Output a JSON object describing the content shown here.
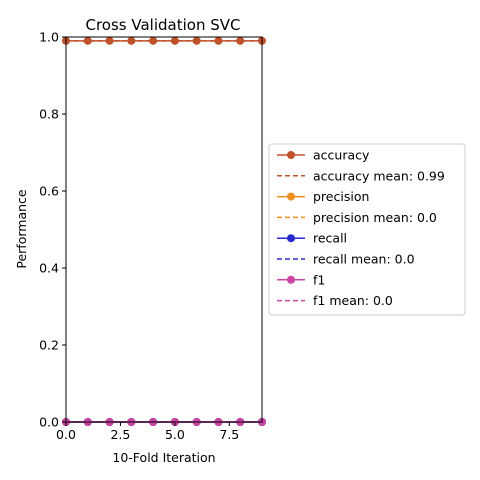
{
  "chart_data": {
    "type": "line",
    "title": "Cross Validation SVC",
    "xlabel": "10-Fold Iteration",
    "ylabel": "Performance",
    "xlim": [
      0,
      9
    ],
    "ylim": [
      0,
      1
    ],
    "x": [
      0,
      1,
      2,
      3,
      4,
      5,
      6,
      7,
      8,
      9
    ],
    "xticks": [
      "0.0",
      "2.5",
      "5.0",
      "7.5"
    ],
    "yticks": [
      "0.0",
      "0.2",
      "0.4",
      "0.6",
      "0.8",
      "1.0"
    ],
    "grid": false,
    "legend_position": "center-right outside",
    "series": [
      {
        "name": "accuracy",
        "color": "#c0522b",
        "values": [
          0.99,
          0.99,
          0.99,
          0.99,
          0.99,
          0.99,
          0.99,
          0.99,
          0.99,
          0.99
        ]
      },
      {
        "name": "precision",
        "color": "#ee8e1c",
        "values": [
          0,
          0,
          0,
          0,
          0,
          0,
          0,
          0,
          0,
          0
        ]
      },
      {
        "name": "recall",
        "color": "#2529cf",
        "values": [
          0,
          0,
          0,
          0,
          0,
          0,
          0,
          0,
          0,
          0
        ]
      },
      {
        "name": "f1",
        "color": "#cc44a3",
        "values": [
          0,
          0,
          0,
          0,
          0,
          0,
          0,
          0,
          0,
          0
        ]
      }
    ],
    "means": [
      {
        "name": "accuracy mean: 0.99",
        "color": "#c0522b",
        "value": 0.99
      },
      {
        "name": "precision mean: 0.0",
        "color": "#ee8e1c",
        "value": 0.0
      },
      {
        "name": "recall mean: 0.0",
        "color": "#2529cf",
        "value": 0.0
      },
      {
        "name": "f1 mean: 0.0",
        "color": "#cc44a3",
        "value": 0.0
      }
    ],
    "legend": [
      {
        "label": "accuracy",
        "color": "#c0522b",
        "style": "marker-line"
      },
      {
        "label": "accuracy mean: 0.99",
        "color": "#c0522b",
        "style": "dashed"
      },
      {
        "label": "precision",
        "color": "#ee8e1c",
        "style": "marker-line"
      },
      {
        "label": "precision mean: 0.0",
        "color": "#ee8e1c",
        "style": "dashed"
      },
      {
        "label": "recall",
        "color": "#2529cf",
        "style": "marker-line"
      },
      {
        "label": "recall mean: 0.0",
        "color": "#2529cf",
        "style": "dashed"
      },
      {
        "label": "f1",
        "color": "#cc44a3",
        "style": "marker-line"
      },
      {
        "label": "f1 mean: 0.0",
        "color": "#cc44a3",
        "style": "dashed"
      }
    ]
  }
}
